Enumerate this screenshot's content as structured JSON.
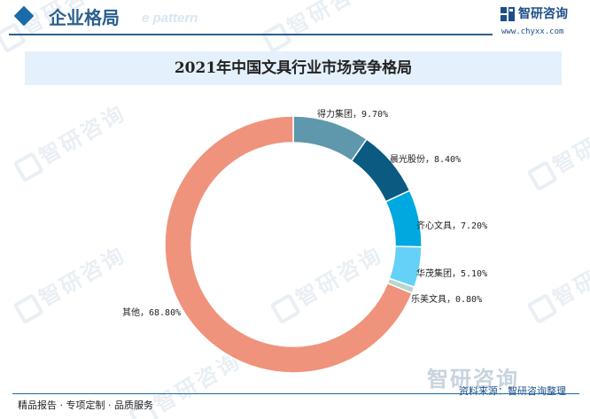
{
  "header": {
    "title": "企业格局",
    "subtitle": "e pattern",
    "brand": "智研咨询",
    "url": "www.chyxx.com"
  },
  "watermark_text": "智研咨询",
  "colors": {
    "accent": "#2b5f8f",
    "title_bar_bg": "#e4f0fb"
  },
  "chart_data": {
    "type": "pie",
    "title": "2021年中国文具行业市场竞争格局",
    "slices": [
      {
        "name": "得力集团",
        "value": 9.7,
        "label": "得力集团，9.70%",
        "color": "#5f97ac"
      },
      {
        "name": "晨光股份",
        "value": 8.4,
        "label": "晨光股份，8.40%",
        "color": "#0b5a82"
      },
      {
        "name": "齐心文具",
        "value": 7.2,
        "label": "齐心文具，7.20%",
        "color": "#00a8e0"
      },
      {
        "name": "华茂集团",
        "value": 5.1,
        "label": "华茂集团，5.10%",
        "color": "#66d1f8"
      },
      {
        "name": "乐美文具",
        "value": 0.8,
        "label": "乐美文具，0.80%",
        "color": "#b8d6d0"
      },
      {
        "name": "其他",
        "value": 68.8,
        "label": "其他，68.80%",
        "color": "#ef937c"
      }
    ]
  },
  "footer": {
    "left": "精品报告 · 专项定制 · 品质服务",
    "source": "资料来源：智研咨询整理",
    "brand": "智研咨询"
  }
}
